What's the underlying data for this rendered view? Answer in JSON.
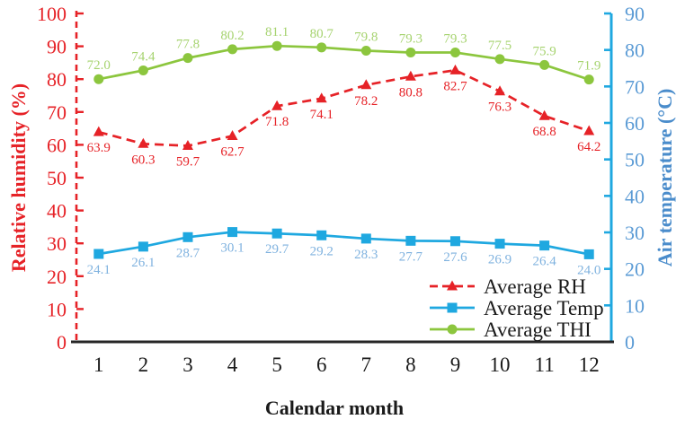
{
  "chart_data": {
    "type": "line",
    "title": "",
    "xlabel": "Calendar month",
    "x_tick_labels": [
      "1",
      "2",
      "3",
      "4",
      "5",
      "6",
      "7",
      "8",
      "9",
      "10",
      "11",
      "12"
    ],
    "grid": "off",
    "left_axis": {
      "label": "Relative humidity (%)",
      "min": 0,
      "max": 100,
      "ticks": [
        0,
        10,
        20,
        30,
        40,
        50,
        60,
        70,
        80,
        90,
        100
      ],
      "color": "#E62227",
      "style": "dashed"
    },
    "right_axis": {
      "label": "Air temperature (°C)",
      "min": 0,
      "max": 90,
      "ticks": [
        0,
        10,
        20,
        30,
        40,
        50,
        60,
        70,
        80,
        90
      ],
      "line_color": "#1FA8E0",
      "tick_label_color": "#5B9BD5",
      "title_color": "#4A8CCB",
      "style": "solid"
    },
    "series": [
      {
        "name": "Average RH",
        "axis": "left",
        "marker": "triangle",
        "line": "dashed",
        "color": "#E62227",
        "label_color": "#E62227",
        "label_position": "below",
        "values": [
          63.9,
          60.3,
          59.7,
          62.7,
          71.8,
          74.1,
          78.2,
          80.8,
          82.7,
          76.3,
          68.8,
          64.2
        ]
      },
      {
        "name": "Average Temp",
        "axis": "right",
        "marker": "square",
        "line": "solid",
        "color": "#1FA8E0",
        "label_color": "#7FB2DF",
        "label_position": "below",
        "values": [
          24.1,
          26.1,
          28.7,
          30.1,
          29.7,
          29.2,
          28.3,
          27.7,
          27.6,
          26.9,
          26.4,
          24.0
        ]
      },
      {
        "name": "Average THI",
        "axis": "right",
        "marker": "circle",
        "line": "solid",
        "color": "#8CC63E",
        "label_color": "#A6D36F",
        "label_position": "above",
        "values": [
          72.0,
          74.4,
          77.8,
          80.2,
          81.1,
          80.7,
          79.8,
          79.3,
          79.3,
          77.5,
          75.9,
          71.9
        ]
      }
    ],
    "legend": {
      "position": "inside-bottom-right",
      "entries": [
        "Average RH",
        "Average Temp",
        "Average THI"
      ],
      "text_color": "#1a1a1a"
    }
  }
}
